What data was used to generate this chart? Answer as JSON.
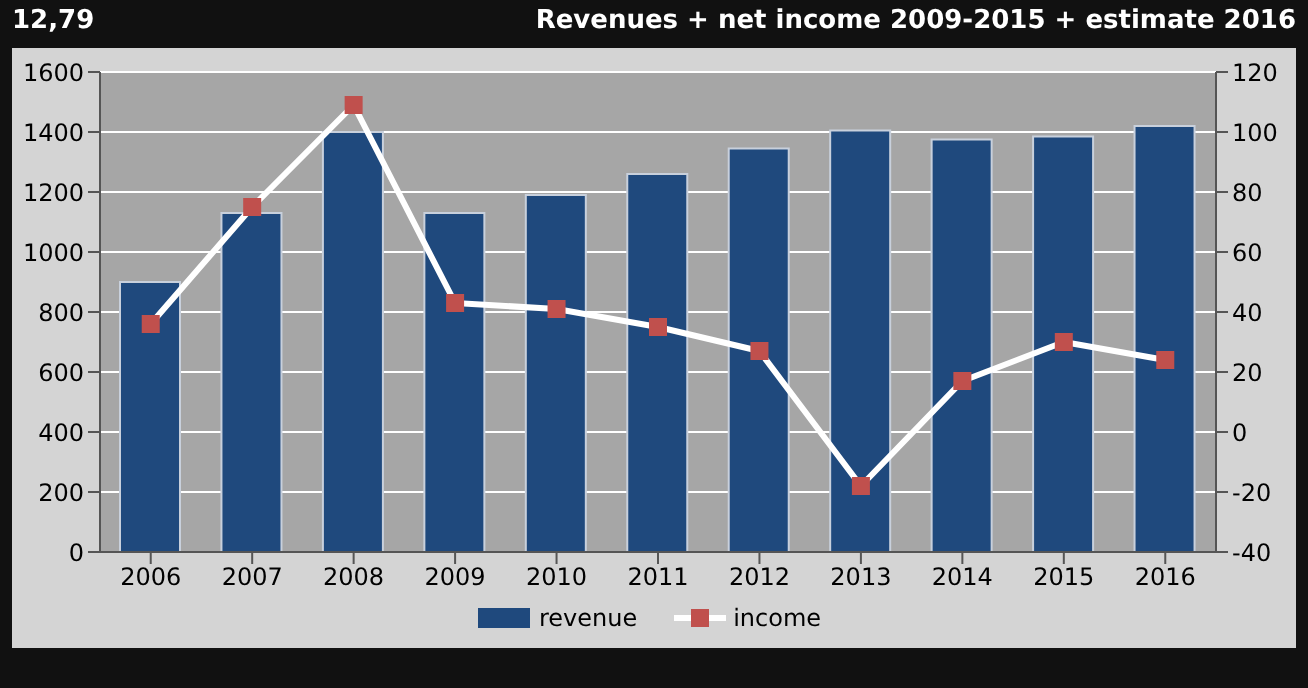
{
  "chart_data": {
    "type": "bar",
    "title": "Revenues + net income 2009-2015 + estimate 2016",
    "annotations": [
      "12,79"
    ],
    "categories": [
      "2006",
      "2007",
      "2008",
      "2009",
      "2010",
      "2011",
      "2012",
      "2013",
      "2014",
      "2015",
      "2016"
    ],
    "series": [
      {
        "name": "revenue",
        "color": "#1f497d",
        "values": [
          900,
          1130,
          1400,
          1130,
          1190,
          1260,
          1345,
          1405,
          1375,
          1385,
          1420
        ]
      },
      {
        "name": "income",
        "type": "line",
        "axis": "y2",
        "color": "#ffffff",
        "marker": "square",
        "values": [
          36,
          75,
          109,
          43,
          41,
          35,
          27,
          -18,
          17,
          30,
          24
        ]
      }
    ],
    "ylim": [
      0,
      1600
    ],
    "yticks": [
      0,
      200,
      400,
      600,
      800,
      1000,
      1200,
      1400,
      1600
    ],
    "y2lim": [
      -40,
      120
    ],
    "y2ticks": [
      -40,
      -20,
      0,
      20,
      40,
      60,
      80,
      100,
      120
    ],
    "grid": "y",
    "legend": "bottom",
    "line_style": "solid"
  }
}
